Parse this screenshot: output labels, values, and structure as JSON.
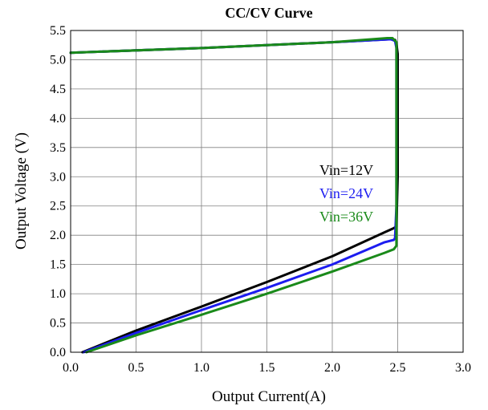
{
  "chart_data": {
    "type": "line",
    "title": "CC/CV Curve",
    "xlabel": "Output Current(A)",
    "ylabel": "Output Voltage (V)",
    "xlim": [
      0,
      3.0
    ],
    "ylim": [
      0,
      5.5
    ],
    "xticks": [
      "0.0",
      "0.5",
      "1.0",
      "1.5",
      "2.0",
      "2.5",
      "3.0"
    ],
    "yticks": [
      "0.0",
      "0.5",
      "1.0",
      "1.5",
      "2.0",
      "2.5",
      "3.0",
      "3.5",
      "4.0",
      "4.5",
      "5.0",
      "5.5"
    ],
    "grid": true,
    "legend_placement": "right-center",
    "series": [
      {
        "name": "Vin=12V",
        "color": "#000000",
        "x": [
          0.0,
          1.0,
          2.0,
          2.44,
          2.48,
          2.49,
          2.5,
          2.5,
          2.49,
          2.47,
          2.4,
          2.0,
          1.5,
          1.0,
          0.5,
          0.09
        ],
        "y": [
          5.12,
          5.2,
          5.3,
          5.35,
          5.34,
          5.28,
          5.1,
          3.0,
          2.15,
          2.12,
          2.05,
          1.64,
          1.2,
          0.78,
          0.37,
          0.0
        ]
      },
      {
        "name": "Vin=24V",
        "color": "#1c1cf0",
        "x": [
          0.0,
          1.0,
          2.0,
          2.45,
          2.48,
          2.49,
          2.49,
          2.49,
          2.48,
          2.47,
          2.4,
          2.0,
          1.5,
          1.0,
          0.5,
          0.1
        ],
        "y": [
          5.12,
          5.2,
          5.3,
          5.35,
          5.32,
          5.2,
          4.0,
          2.5,
          1.95,
          1.92,
          1.88,
          1.5,
          1.1,
          0.72,
          0.33,
          0.0
        ]
      },
      {
        "name": "Vin=36V",
        "color": "#1a8a1a",
        "x": [
          0.0,
          1.0,
          2.0,
          2.42,
          2.46,
          2.49,
          2.49,
          2.49,
          2.49,
          2.47,
          2.4,
          2.0,
          1.5,
          1.0,
          0.5,
          0.12
        ],
        "y": [
          5.12,
          5.2,
          5.3,
          5.37,
          5.37,
          5.3,
          4.8,
          2.8,
          1.82,
          1.76,
          1.7,
          1.38,
          1.0,
          0.64,
          0.29,
          0.0
        ]
      }
    ]
  }
}
